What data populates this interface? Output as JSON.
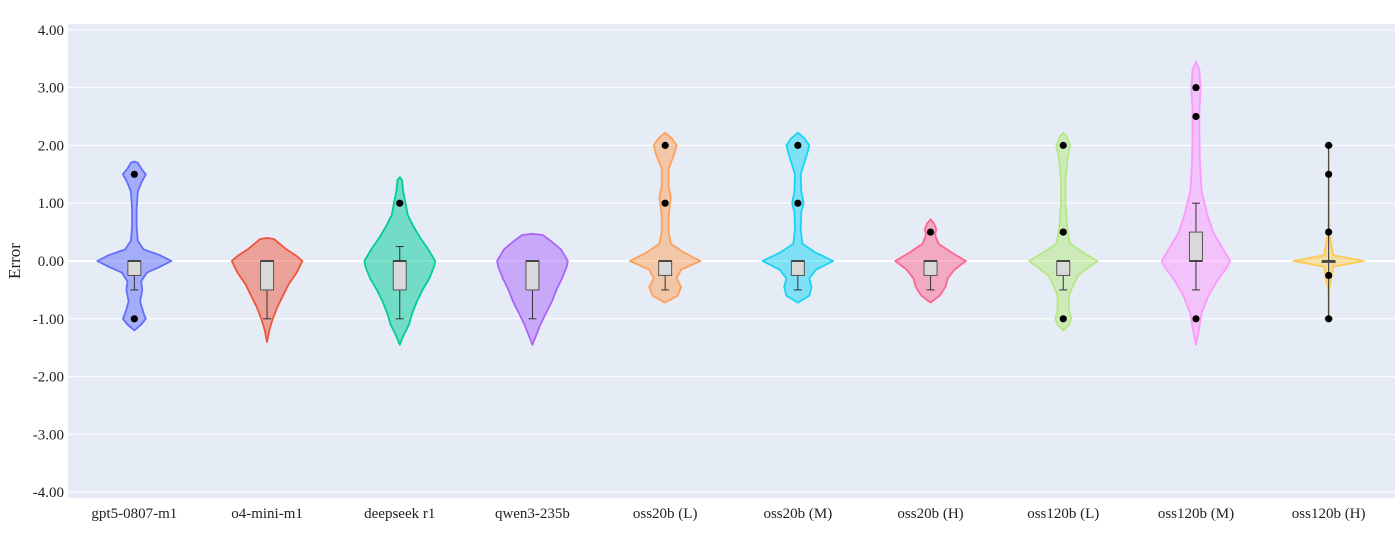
{
  "chart_data": {
    "type": "violin",
    "ylabel": "Error",
    "ylim": [
      -4.1,
      4.1
    ],
    "yticks": [
      4,
      3,
      2,
      1,
      0,
      -1,
      -2,
      -3,
      -4
    ],
    "ytick_labels": [
      "4.00",
      "3.00",
      "2.00",
      "1.00",
      "0.00",
      "-1.00",
      "-2.00",
      "-3.00",
      "-4.00"
    ],
    "grid": true,
    "background": "#e5ecf6",
    "series": [
      {
        "category": "gpt5-0807-m1",
        "color": "#636efa",
        "box": {
          "q1": -0.25,
          "median": 0.0,
          "q3": 0.0,
          "whisker_low": -0.5,
          "whisker_high": 0.0
        },
        "outliers": [
          1.5,
          -1.0
        ],
        "density": [
          [
            -1.2,
            0.0
          ],
          [
            -1.1,
            0.12
          ],
          [
            -1.0,
            0.2
          ],
          [
            -0.9,
            0.16
          ],
          [
            -0.7,
            0.1
          ],
          [
            -0.5,
            0.14
          ],
          [
            -0.35,
            0.12
          ],
          [
            -0.2,
            0.22
          ],
          [
            -0.1,
            0.45
          ],
          [
            0.0,
            0.65
          ],
          [
            0.1,
            0.45
          ],
          [
            0.2,
            0.16
          ],
          [
            0.35,
            0.06
          ],
          [
            0.6,
            0.04
          ],
          [
            0.9,
            0.04
          ],
          [
            1.2,
            0.06
          ],
          [
            1.35,
            0.12
          ],
          [
            1.5,
            0.2
          ],
          [
            1.6,
            0.12
          ],
          [
            1.7,
            0.06
          ],
          [
            1.72,
            0.0
          ]
        ]
      },
      {
        "category": "o4-mini-m1",
        "color": "#ef553b",
        "box": {
          "q1": -0.5,
          "median": 0.0,
          "q3": 0.0,
          "whisker_low": -1.0,
          "whisker_high": 0.0
        },
        "outliers": [],
        "density": [
          [
            -1.4,
            0.0
          ],
          [
            -1.2,
            0.04
          ],
          [
            -1.0,
            0.1
          ],
          [
            -0.8,
            0.18
          ],
          [
            -0.6,
            0.28
          ],
          [
            -0.4,
            0.38
          ],
          [
            -0.2,
            0.52
          ],
          [
            0.0,
            0.62
          ],
          [
            0.1,
            0.5
          ],
          [
            0.2,
            0.34
          ],
          [
            0.3,
            0.22
          ],
          [
            0.38,
            0.12
          ],
          [
            0.4,
            0.0
          ]
        ]
      },
      {
        "category": "deepseek r1",
        "color": "#00cc96",
        "box": {
          "q1": -0.5,
          "median": 0.0,
          "q3": 0.0,
          "whisker_low": -1.0,
          "whisker_high": 0.25
        },
        "outliers": [
          1.0
        ],
        "density": [
          [
            -1.45,
            0.0
          ],
          [
            -1.3,
            0.06
          ],
          [
            -1.1,
            0.16
          ],
          [
            -0.9,
            0.22
          ],
          [
            -0.7,
            0.3
          ],
          [
            -0.5,
            0.4
          ],
          [
            -0.3,
            0.52
          ],
          [
            -0.1,
            0.6
          ],
          [
            0.0,
            0.62
          ],
          [
            0.2,
            0.5
          ],
          [
            0.4,
            0.36
          ],
          [
            0.6,
            0.24
          ],
          [
            0.8,
            0.14
          ],
          [
            1.0,
            0.1
          ],
          [
            1.2,
            0.06
          ],
          [
            1.4,
            0.04
          ],
          [
            1.45,
            0.0
          ]
        ]
      },
      {
        "category": "qwen3-235b",
        "color": "#ab63fa",
        "box": {
          "q1": -0.5,
          "median": 0.0,
          "q3": 0.0,
          "whisker_low": -1.0,
          "whisker_high": 0.0
        },
        "outliers": [],
        "density": [
          [
            -1.45,
            0.0
          ],
          [
            -1.3,
            0.06
          ],
          [
            -1.1,
            0.14
          ],
          [
            -0.9,
            0.24
          ],
          [
            -0.7,
            0.34
          ],
          [
            -0.5,
            0.42
          ],
          [
            -0.3,
            0.52
          ],
          [
            -0.1,
            0.6
          ],
          [
            0.0,
            0.62
          ],
          [
            0.2,
            0.5
          ],
          [
            0.35,
            0.32
          ],
          [
            0.45,
            0.18
          ],
          [
            0.47,
            0.0
          ]
        ]
      },
      {
        "category": "oss20b (L)",
        "color": "#ffa15a",
        "box": {
          "q1": -0.25,
          "median": 0.0,
          "q3": 0.0,
          "whisker_low": -0.5,
          "whisker_high": 0.0
        },
        "outliers": [
          2.0,
          1.0
        ],
        "density": [
          [
            -0.72,
            0.0
          ],
          [
            -0.6,
            0.22
          ],
          [
            -0.45,
            0.28
          ],
          [
            -0.3,
            0.2
          ],
          [
            -0.15,
            0.28
          ],
          [
            0.0,
            0.62
          ],
          [
            0.15,
            0.32
          ],
          [
            0.3,
            0.1
          ],
          [
            0.5,
            0.06
          ],
          [
            0.75,
            0.06
          ],
          [
            0.95,
            0.08
          ],
          [
            1.1,
            0.1
          ],
          [
            1.3,
            0.06
          ],
          [
            1.6,
            0.06
          ],
          [
            1.85,
            0.16
          ],
          [
            2.0,
            0.2
          ],
          [
            2.12,
            0.12
          ],
          [
            2.22,
            0.0
          ]
        ]
      },
      {
        "category": "oss20b (M)",
        "color": "#19d3f3",
        "box": {
          "q1": -0.25,
          "median": 0.0,
          "q3": 0.0,
          "whisker_low": -0.5,
          "whisker_high": 0.0
        },
        "outliers": [
          2.0,
          1.0
        ],
        "density": [
          [
            -0.72,
            0.0
          ],
          [
            -0.6,
            0.2
          ],
          [
            -0.45,
            0.24
          ],
          [
            -0.3,
            0.2
          ],
          [
            -0.15,
            0.32
          ],
          [
            0.0,
            0.62
          ],
          [
            0.15,
            0.3
          ],
          [
            0.3,
            0.08
          ],
          [
            0.55,
            0.05
          ],
          [
            0.85,
            0.06
          ],
          [
            1.0,
            0.1
          ],
          [
            1.2,
            0.06
          ],
          [
            1.5,
            0.05
          ],
          [
            1.85,
            0.16
          ],
          [
            2.0,
            0.2
          ],
          [
            2.12,
            0.12
          ],
          [
            2.22,
            0.0
          ]
        ]
      },
      {
        "category": "oss20b (H)",
        "color": "#ff6692",
        "box": {
          "q1": -0.25,
          "median": 0.0,
          "q3": 0.0,
          "whisker_low": -0.5,
          "whisker_high": 0.0
        },
        "outliers": [
          0.5
        ],
        "density": [
          [
            -0.72,
            0.0
          ],
          [
            -0.6,
            0.16
          ],
          [
            -0.45,
            0.26
          ],
          [
            -0.3,
            0.3
          ],
          [
            -0.15,
            0.42
          ],
          [
            0.0,
            0.62
          ],
          [
            0.15,
            0.36
          ],
          [
            0.3,
            0.14
          ],
          [
            0.45,
            0.08
          ],
          [
            0.55,
            0.1
          ],
          [
            0.65,
            0.06
          ],
          [
            0.72,
            0.0
          ]
        ]
      },
      {
        "category": "oss120b (L)",
        "color": "#b6e880",
        "box": {
          "q1": -0.25,
          "median": 0.0,
          "q3": 0.0,
          "whisker_low": -0.5,
          "whisker_high": 0.0
        },
        "outliers": [
          2.0,
          0.5,
          -1.0
        ],
        "density": [
          [
            -1.2,
            0.0
          ],
          [
            -1.1,
            0.1
          ],
          [
            -1.0,
            0.14
          ],
          [
            -0.85,
            0.1
          ],
          [
            -0.6,
            0.1
          ],
          [
            -0.45,
            0.16
          ],
          [
            -0.25,
            0.26
          ],
          [
            -0.1,
            0.46
          ],
          [
            0.0,
            0.6
          ],
          [
            0.15,
            0.34
          ],
          [
            0.3,
            0.12
          ],
          [
            0.5,
            0.08
          ],
          [
            0.7,
            0.06
          ],
          [
            1.0,
            0.04
          ],
          [
            1.4,
            0.04
          ],
          [
            1.8,
            0.08
          ],
          [
            2.0,
            0.12
          ],
          [
            2.15,
            0.06
          ],
          [
            2.22,
            0.0
          ]
        ]
      },
      {
        "category": "oss120b (M)",
        "color": "#ff97ff",
        "box": {
          "q1": 0.0,
          "median": 0.0,
          "q3": 0.5,
          "whisker_low": -0.5,
          "whisker_high": 1.0
        },
        "outliers": [
          3.0,
          2.5,
          -1.0
        ],
        "density": [
          [
            -1.45,
            0.0
          ],
          [
            -1.2,
            0.05
          ],
          [
            -0.9,
            0.1
          ],
          [
            -0.6,
            0.22
          ],
          [
            -0.3,
            0.4
          ],
          [
            -0.1,
            0.55
          ],
          [
            0.0,
            0.6
          ],
          [
            0.2,
            0.48
          ],
          [
            0.5,
            0.3
          ],
          [
            0.8,
            0.2
          ],
          [
            1.2,
            0.1
          ],
          [
            1.7,
            0.07
          ],
          [
            2.2,
            0.06
          ],
          [
            2.6,
            0.06
          ],
          [
            3.0,
            0.08
          ],
          [
            3.3,
            0.06
          ],
          [
            3.45,
            0.0
          ]
        ]
      },
      {
        "category": "oss120b (H)",
        "color": "#fecb52",
        "box": {
          "q1": 0.0,
          "median": 0.0,
          "q3": 0.0,
          "whisker_low": -1.0,
          "whisker_high": 2.0
        },
        "outliers": [
          2.0,
          1.5,
          0.5,
          -0.25,
          -1.0
        ],
        "density": [
          [
            -1.0,
            0.0
          ],
          [
            -0.9,
            0.005
          ],
          [
            -0.5,
            0.01
          ],
          [
            -0.1,
            0.08
          ],
          [
            0.0,
            0.62
          ],
          [
            0.1,
            0.08
          ],
          [
            0.5,
            0.01
          ],
          [
            1.5,
            0.005
          ],
          [
            2.0,
            0.0
          ]
        ]
      }
    ]
  }
}
